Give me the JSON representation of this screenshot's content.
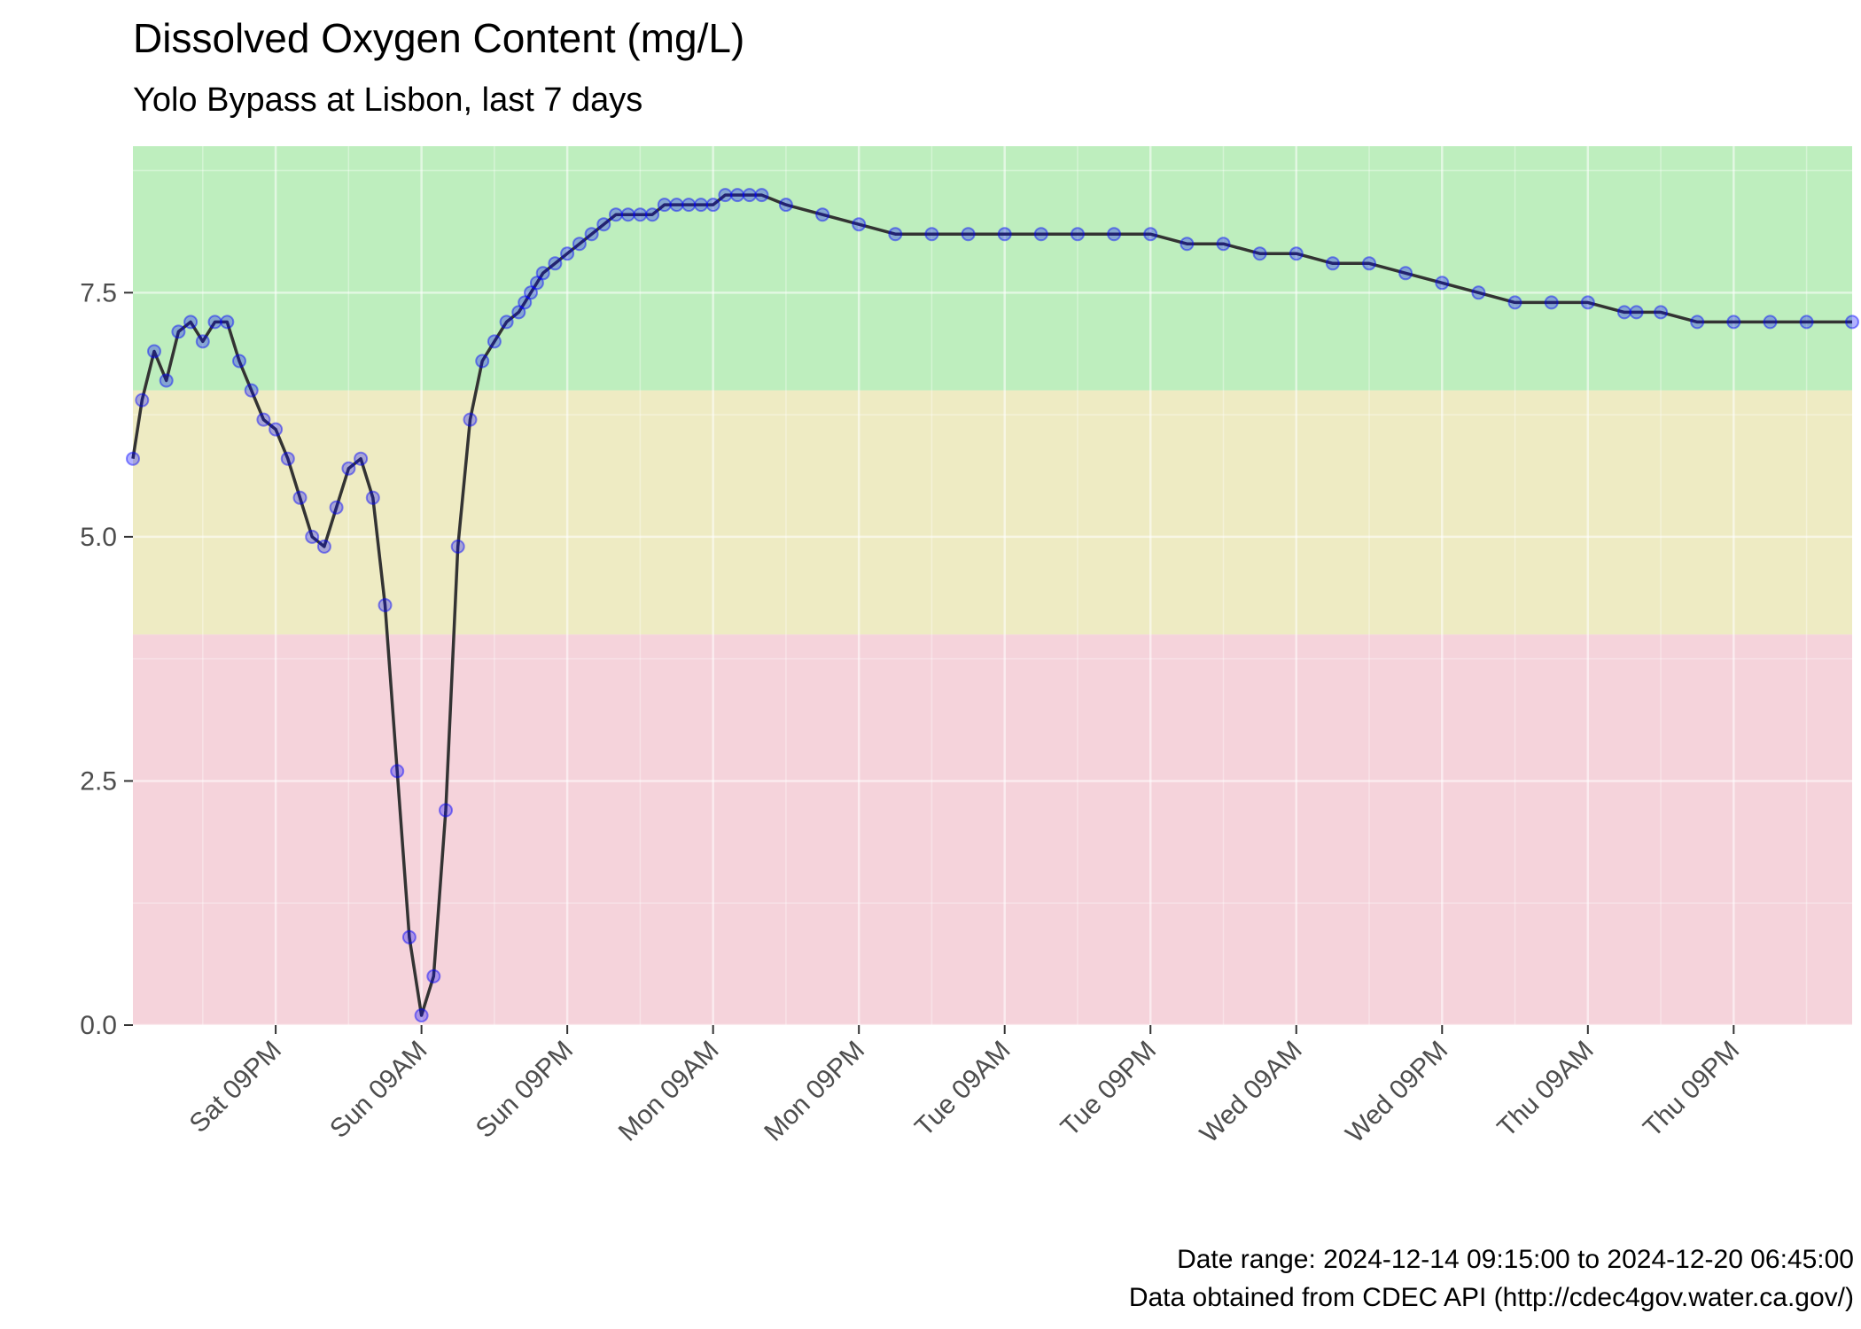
{
  "chart_data": {
    "type": "line",
    "title": "Dissolved Oxygen Content (mg/L)",
    "subtitle": "Yolo Bypass at Lisbon, last 7 days",
    "xlabel": "",
    "ylabel": "",
    "ylim": [
      0,
      9
    ],
    "y_ticks": [
      0,
      2.5,
      5,
      7.5
    ],
    "y_tick_labels": [
      "0.0",
      "2.5",
      "5.0",
      "7.5"
    ],
    "xlim": [
      "2024-12-14 09:15",
      "2024-12-20 06:45"
    ],
    "x_ticks": [
      "2024-12-14 21:00",
      "2024-12-15 09:00",
      "2024-12-15 21:00",
      "2024-12-16 09:00",
      "2024-12-16 21:00",
      "2024-12-17 09:00",
      "2024-12-17 21:00",
      "2024-12-18 09:00",
      "2024-12-18 21:00",
      "2024-12-19 09:00",
      "2024-12-19 21:00"
    ],
    "x_tick_labels": [
      "Sat 09PM",
      "Sun 09AM",
      "Sun 09PM",
      "Mon 09AM",
      "Mon 09PM",
      "Tue 09AM",
      "Tue 09PM",
      "Wed 09AM",
      "Wed 09PM",
      "Thu 09AM",
      "Thu 09PM"
    ],
    "grid": true,
    "bands": [
      {
        "ymin": 0,
        "ymax": 4,
        "color": "#f5d3db"
      },
      {
        "ymin": 4,
        "ymax": 6.5,
        "color": "#eeebc3"
      },
      {
        "ymin": 6.5,
        "ymax": 9,
        "color": "#beeebe"
      }
    ],
    "series": [
      {
        "line_color": "#333333",
        "point_color": "#0000ff",
        "x": [
          "2024-12-14 09:15",
          "2024-12-14 10:00",
          "2024-12-14 11:00",
          "2024-12-14 12:00",
          "2024-12-14 13:00",
          "2024-12-14 14:00",
          "2024-12-14 15:00",
          "2024-12-14 16:00",
          "2024-12-14 17:00",
          "2024-12-14 18:00",
          "2024-12-14 19:00",
          "2024-12-14 20:00",
          "2024-12-14 21:00",
          "2024-12-14 22:00",
          "2024-12-14 23:00",
          "2024-12-15 00:00",
          "2024-12-15 01:00",
          "2024-12-15 02:00",
          "2024-12-15 03:00",
          "2024-12-15 04:00",
          "2024-12-15 05:00",
          "2024-12-15 06:00",
          "2024-12-15 07:00",
          "2024-12-15 08:00",
          "2024-12-15 09:00",
          "2024-12-15 10:00",
          "2024-12-15 11:00",
          "2024-12-15 12:00",
          "2024-12-15 13:00",
          "2024-12-15 14:00",
          "2024-12-15 15:00",
          "2024-12-15 16:00",
          "2024-12-15 17:00",
          "2024-12-15 17:30",
          "2024-12-15 18:00",
          "2024-12-15 18:30",
          "2024-12-15 19:00",
          "2024-12-15 20:00",
          "2024-12-15 21:00",
          "2024-12-15 22:00",
          "2024-12-15 23:00",
          "2024-12-16 00:00",
          "2024-12-16 01:00",
          "2024-12-16 02:00",
          "2024-12-16 03:00",
          "2024-12-16 04:00",
          "2024-12-16 05:00",
          "2024-12-16 06:00",
          "2024-12-16 07:00",
          "2024-12-16 08:00",
          "2024-12-16 09:00",
          "2024-12-16 10:00",
          "2024-12-16 11:00",
          "2024-12-16 12:00",
          "2024-12-16 13:00",
          "2024-12-16 15:00",
          "2024-12-16 18:00",
          "2024-12-16 21:00",
          "2024-12-17 00:00",
          "2024-12-17 03:00",
          "2024-12-17 06:00",
          "2024-12-17 09:00",
          "2024-12-17 12:00",
          "2024-12-17 15:00",
          "2024-12-17 18:00",
          "2024-12-17 21:00",
          "2024-12-18 00:00",
          "2024-12-18 03:00",
          "2024-12-18 06:00",
          "2024-12-18 09:00",
          "2024-12-18 12:00",
          "2024-12-18 15:00",
          "2024-12-18 18:00",
          "2024-12-18 21:00",
          "2024-12-19 00:00",
          "2024-12-19 03:00",
          "2024-12-19 06:00",
          "2024-12-19 09:00",
          "2024-12-19 12:00",
          "2024-12-19 13:00",
          "2024-12-19 15:00",
          "2024-12-19 18:00",
          "2024-12-19 21:00",
          "2024-12-20 00:00",
          "2024-12-20 03:00",
          "2024-12-20 06:45"
        ],
        "y": [
          5.8,
          6.4,
          6.9,
          6.6,
          7.1,
          7.2,
          7.0,
          7.2,
          7.2,
          6.8,
          6.5,
          6.2,
          6.1,
          5.8,
          5.4,
          5.0,
          4.9,
          5.3,
          5.7,
          5.8,
          5.4,
          4.3,
          2.6,
          0.9,
          0.1,
          0.5,
          2.2,
          4.9,
          6.2,
          6.8,
          7.0,
          7.2,
          7.3,
          7.4,
          7.5,
          7.6,
          7.7,
          7.8,
          7.9,
          8.0,
          8.1,
          8.2,
          8.3,
          8.3,
          8.3,
          8.3,
          8.4,
          8.4,
          8.4,
          8.4,
          8.4,
          8.5,
          8.5,
          8.5,
          8.5,
          8.4,
          8.3,
          8.2,
          8.1,
          8.1,
          8.1,
          8.1,
          8.1,
          8.1,
          8.1,
          8.1,
          8.0,
          8.0,
          7.9,
          7.9,
          7.8,
          7.8,
          7.7,
          7.6,
          7.5,
          7.4,
          7.4,
          7.4,
          7.3,
          7.3,
          7.3,
          7.2,
          7.2,
          7.2,
          7.2,
          7.2
        ]
      }
    ]
  },
  "captions": {
    "date_range": "Date range: 2024-12-14 09:15:00 to 2024-12-20 06:45:00",
    "source": "Data obtained from CDEC API (http://cdec4gov.water.ca.gov/)"
  }
}
